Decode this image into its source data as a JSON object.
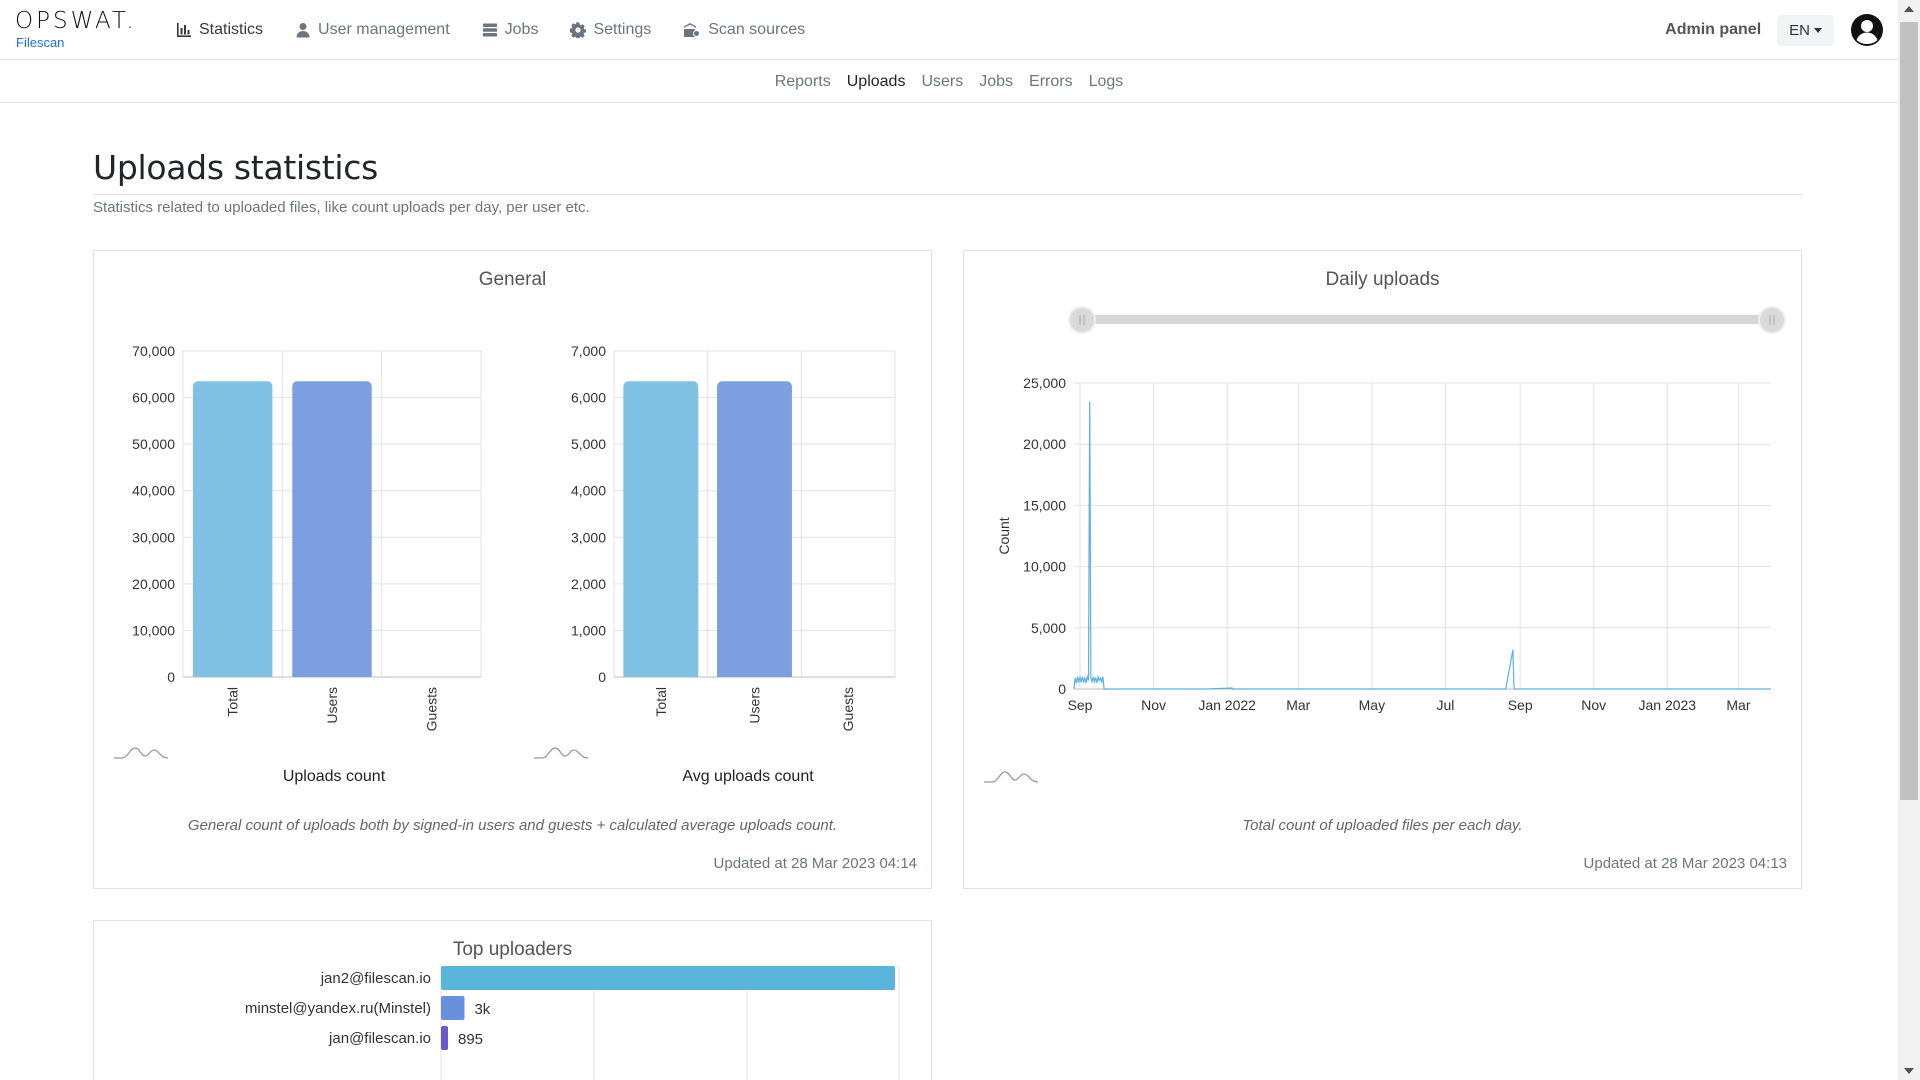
{
  "brand": {
    "logo": "OPSWAT.",
    "product": "Filescan"
  },
  "nav": {
    "items": [
      {
        "label": "Statistics",
        "icon": "bar-chart-icon",
        "active": true
      },
      {
        "label": "User management",
        "icon": "user-icon",
        "active": false
      },
      {
        "label": "Jobs",
        "icon": "server-icon",
        "active": false
      },
      {
        "label": "Settings",
        "icon": "gear-icon",
        "active": false
      },
      {
        "label": "Scan sources",
        "icon": "scan-sources-icon",
        "active": false
      }
    ],
    "admin_panel": "Admin panel",
    "language": "EN"
  },
  "subnav": {
    "items": [
      {
        "label": "Reports",
        "active": false
      },
      {
        "label": "Uploads",
        "active": true
      },
      {
        "label": "Users",
        "active": false
      },
      {
        "label": "Jobs",
        "active": false
      },
      {
        "label": "Errors",
        "active": false
      },
      {
        "label": "Logs",
        "active": false
      }
    ]
  },
  "page": {
    "title": "Uploads statistics",
    "description": "Statistics related to uploaded files, like count uploads per day, per user etc."
  },
  "general_card": {
    "title": "General",
    "description": "General count of uploads both by signed-in users and guests + calculated average uploads count.",
    "updated": "Updated at 28 Mar 2023 04:14",
    "uploads_label": "Uploads count",
    "avg_label": "Avg uploads count"
  },
  "daily_card": {
    "title": "Daily uploads",
    "description": "Total count of uploaded files per each day.",
    "updated": "Updated at 28 Mar 2023 04:13"
  },
  "top_card": {
    "title": "Top uploaders"
  },
  "colors": {
    "total": "#7fc1e3",
    "users": "#7b9fe0",
    "series": "#5ab0e0",
    "brand_blue": "#1d6fd6"
  },
  "chart_data": [
    {
      "type": "bar",
      "name": "Uploads count",
      "categories": [
        "Total",
        "Users",
        "Guests"
      ],
      "values": [
        63500,
        63500,
        0
      ],
      "ylim": [
        0,
        70000
      ],
      "yticks": [
        0,
        10000,
        20000,
        30000,
        40000,
        50000,
        60000,
        70000
      ],
      "ytick_labels": [
        "0",
        "10,000",
        "20,000",
        "30,000",
        "40,000",
        "50,000",
        "60,000",
        "70,000"
      ]
    },
    {
      "type": "bar",
      "name": "Avg uploads count",
      "categories": [
        "Total",
        "Users",
        "Guests"
      ],
      "values": [
        6350,
        6350,
        0
      ],
      "ylim": [
        0,
        7000
      ],
      "yticks": [
        0,
        1000,
        2000,
        3000,
        4000,
        5000,
        6000,
        7000
      ],
      "ytick_labels": [
        "0",
        "1,000",
        "2,000",
        "3,000",
        "4,000",
        "5,000",
        "6,000",
        "7,000"
      ]
    },
    {
      "type": "line",
      "name": "Daily uploads",
      "ylabel": "Count",
      "ylim": [
        0,
        25000
      ],
      "yticks": [
        0,
        5000,
        10000,
        15000,
        20000,
        25000
      ],
      "ytick_labels": [
        "0",
        "5,000",
        "10,000",
        "15,000",
        "20,000",
        "25,000"
      ],
      "xticks": [
        "Sep",
        "Nov",
        "Jan 2022",
        "Mar",
        "May",
        "Jul",
        "Sep",
        "Nov",
        "Jan 2023",
        "Mar"
      ],
      "x_start": "2021-08-27",
      "x_end": "2023-03-28",
      "xtick_dates": [
        "2021-09-01",
        "2021-11-01",
        "2022-01-01",
        "2022-03-01",
        "2022-05-01",
        "2022-07-01",
        "2022-09-01",
        "2022-11-01",
        "2023-01-01",
        "2023-03-01"
      ],
      "points": [
        [
          "2021-08-27",
          0
        ],
        [
          "2021-08-28",
          900
        ],
        [
          "2021-08-29",
          500
        ],
        [
          "2021-08-30",
          1000
        ],
        [
          "2021-08-31",
          600
        ],
        [
          "2021-09-01",
          950
        ],
        [
          "2021-09-02",
          550
        ],
        [
          "2021-09-03",
          1000
        ],
        [
          "2021-09-04",
          600
        ],
        [
          "2021-09-05",
          900
        ],
        [
          "2021-09-06",
          500
        ],
        [
          "2021-09-07",
          1000
        ],
        [
          "2021-09-08",
          700
        ],
        [
          "2021-09-09",
          23500
        ],
        [
          "2021-09-10",
          900
        ],
        [
          "2021-09-11",
          600
        ],
        [
          "2021-09-12",
          1000
        ],
        [
          "2021-09-13",
          600
        ],
        [
          "2021-09-14",
          950
        ],
        [
          "2021-09-15",
          500
        ],
        [
          "2021-09-16",
          1000
        ],
        [
          "2021-09-17",
          700
        ],
        [
          "2021-09-18",
          900
        ],
        [
          "2021-09-19",
          600
        ],
        [
          "2021-09-20",
          1000
        ],
        [
          "2021-09-21",
          0
        ],
        [
          "2021-12-15",
          0
        ],
        [
          "2022-01-05",
          80
        ],
        [
          "2022-01-06",
          0
        ],
        [
          "2022-06-01",
          0
        ],
        [
          "2022-08-20",
          0
        ],
        [
          "2022-08-26",
          3200
        ],
        [
          "2022-08-27",
          0
        ],
        [
          "2022-12-01",
          0
        ],
        [
          "2023-03-28",
          0
        ]
      ]
    },
    {
      "type": "bar",
      "orientation": "horizontal",
      "name": "Top uploaders",
      "categories": [
        "jan2@filescan.io",
        "minstel@yandex.ru(Minstel)",
        "jan@filescan.io"
      ],
      "values": [
        58000,
        3000,
        895
      ],
      "value_labels": [
        "",
        "3k",
        "895"
      ],
      "colors": [
        "#5ab4dc",
        "#6b8fe0",
        "#6a5acd"
      ]
    }
  ]
}
